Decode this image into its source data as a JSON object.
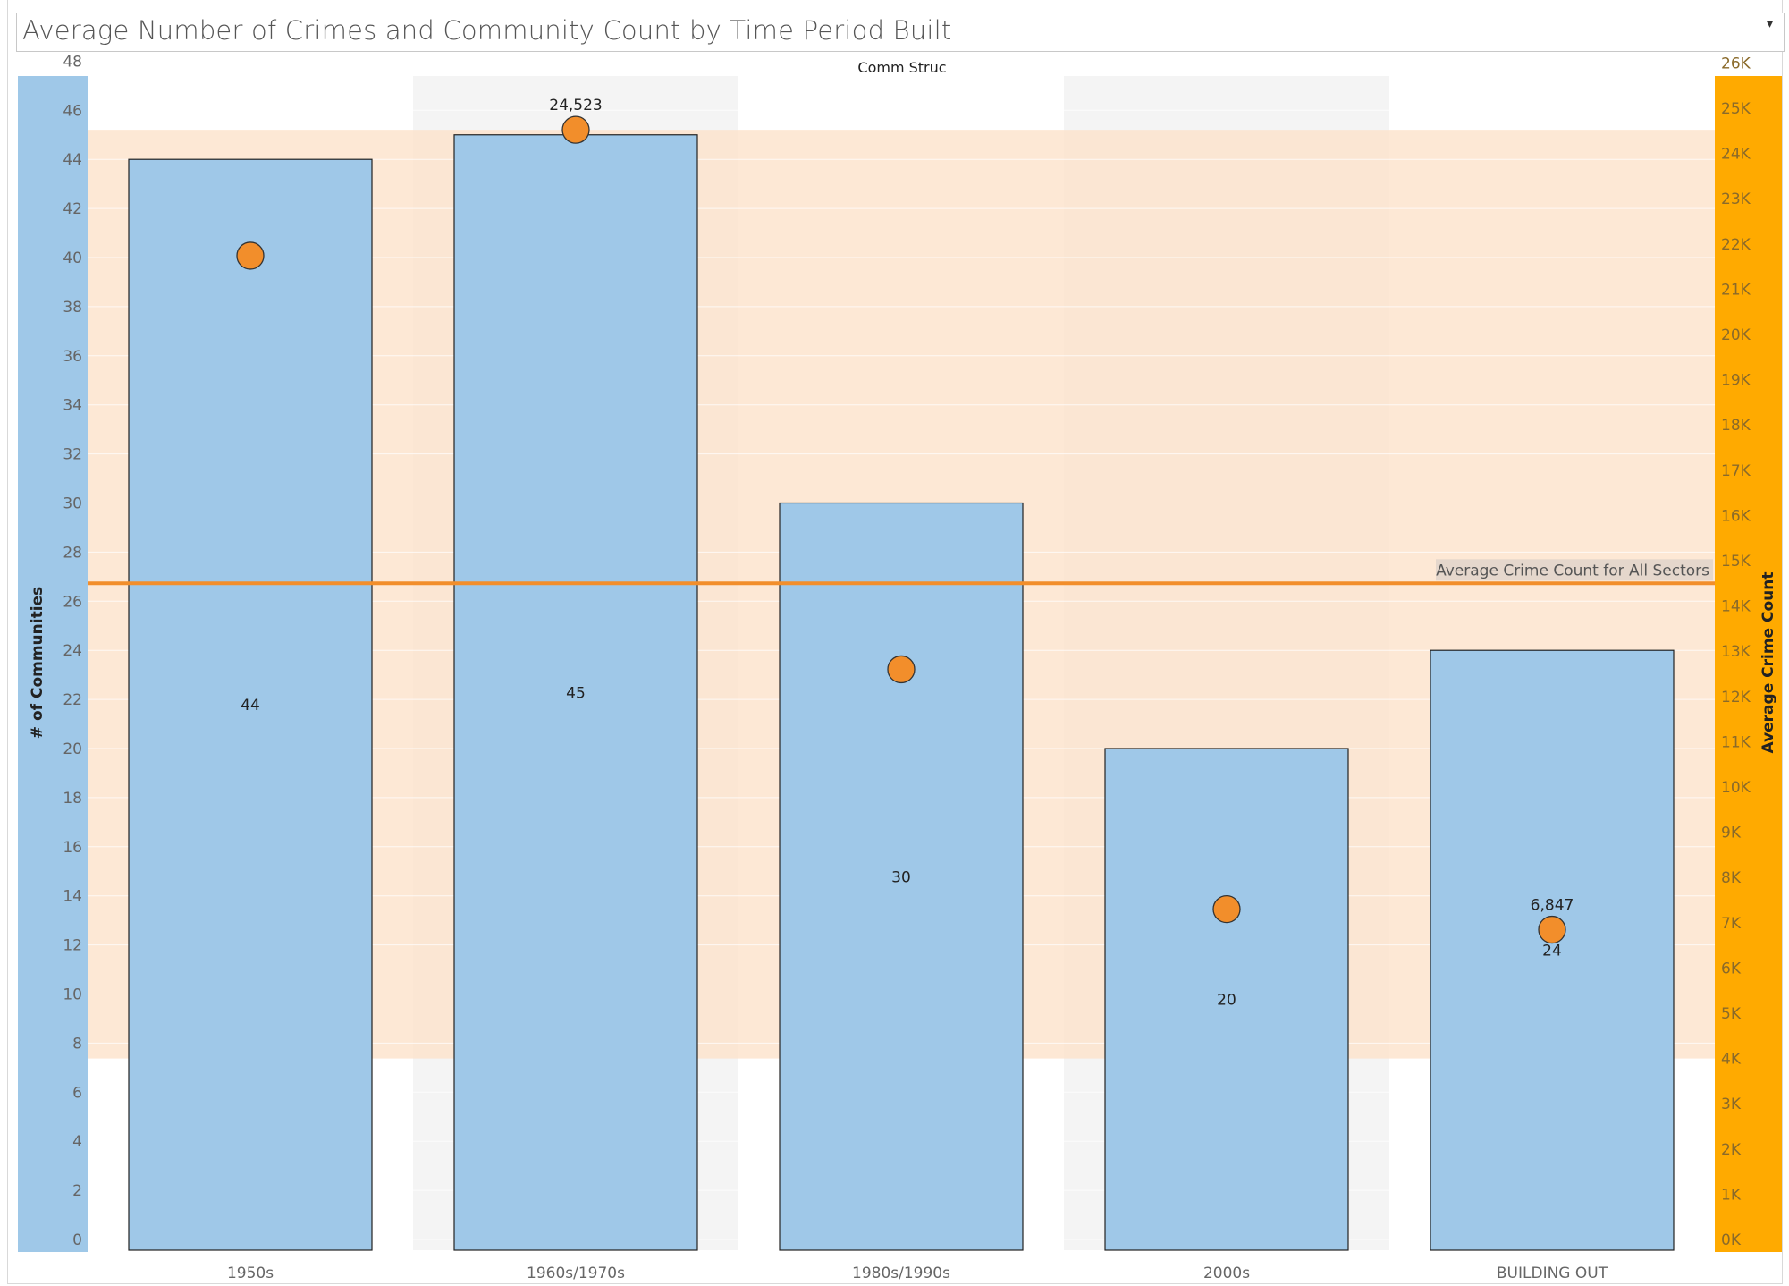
{
  "title": "Average Number of Crimes and Community Count by Time Period Built",
  "chart_data": {
    "type": "bar",
    "header": "Comm Struc",
    "categories": [
      "1950s",
      "1960s/1970s",
      "1980s/1990s",
      "2000s",
      "BUILDING OUT"
    ],
    "series": [
      {
        "type": "bar",
        "axis": "left",
        "values": [
          44,
          45,
          30,
          20,
          24
        ],
        "labels": [
          "44",
          "45",
          "30",
          "20",
          "24"
        ],
        "color": "#9fc8e8"
      },
      {
        "type": "scatter",
        "axis": "right",
        "values": [
          21740,
          24523,
          12600,
          7300,
          6847
        ],
        "labels": [
          "",
          "24,523",
          "",
          "",
          "6,847"
        ],
        "color": "#f28e2b"
      }
    ],
    "ylabel": "# of Communities",
    "ylim": [
      0,
      48
    ],
    "yticks": [
      0,
      2,
      4,
      6,
      8,
      10,
      12,
      14,
      16,
      18,
      20,
      22,
      24,
      26,
      28,
      30,
      32,
      34,
      36,
      38,
      40,
      42,
      44,
      46,
      48
    ],
    "y2label": "Average Crime Count",
    "y2lim": [
      0,
      26000
    ],
    "y2ticks": [
      {
        "v": 0,
        "t": "0K"
      },
      {
        "v": 1000,
        "t": "1K"
      },
      {
        "v": 2000,
        "t": "2K"
      },
      {
        "v": 3000,
        "t": "3K"
      },
      {
        "v": 4000,
        "t": "4K"
      },
      {
        "v": 5000,
        "t": "5K"
      },
      {
        "v": 6000,
        "t": "6K"
      },
      {
        "v": 7000,
        "t": "7K"
      },
      {
        "v": 8000,
        "t": "8K"
      },
      {
        "v": 9000,
        "t": "9K"
      },
      {
        "v": 10000,
        "t": "10K"
      },
      {
        "v": 11000,
        "t": "11K"
      },
      {
        "v": 12000,
        "t": "12K"
      },
      {
        "v": 13000,
        "t": "13K"
      },
      {
        "v": 14000,
        "t": "14K"
      },
      {
        "v": 15000,
        "t": "15K"
      },
      {
        "v": 16000,
        "t": "16K"
      },
      {
        "v": 17000,
        "t": "17K"
      },
      {
        "v": 18000,
        "t": "18K"
      },
      {
        "v": 19000,
        "t": "19K"
      },
      {
        "v": 20000,
        "t": "20K"
      },
      {
        "v": 21000,
        "t": "21K"
      },
      {
        "v": 22000,
        "t": "22K"
      },
      {
        "v": 23000,
        "t": "23K"
      },
      {
        "v": 24000,
        "t": "24K"
      },
      {
        "v": 25000,
        "t": "25K"
      },
      {
        "v": 26000,
        "t": "26K"
      }
    ],
    "reference_line": {
      "value": 14500,
      "axis": "right",
      "label": "Average Crime Count for All Sectors",
      "color": "#f28e2b"
    },
    "reference_band": {
      "from": 4000,
      "to": 24523,
      "axis": "right",
      "color": "#fde3cc"
    },
    "grid": true,
    "colors": {
      "left_axis_bg": "#9fc8e8",
      "right_axis_bg": "#ffaa00",
      "alt_column_bg": "#f4f4f4"
    }
  }
}
